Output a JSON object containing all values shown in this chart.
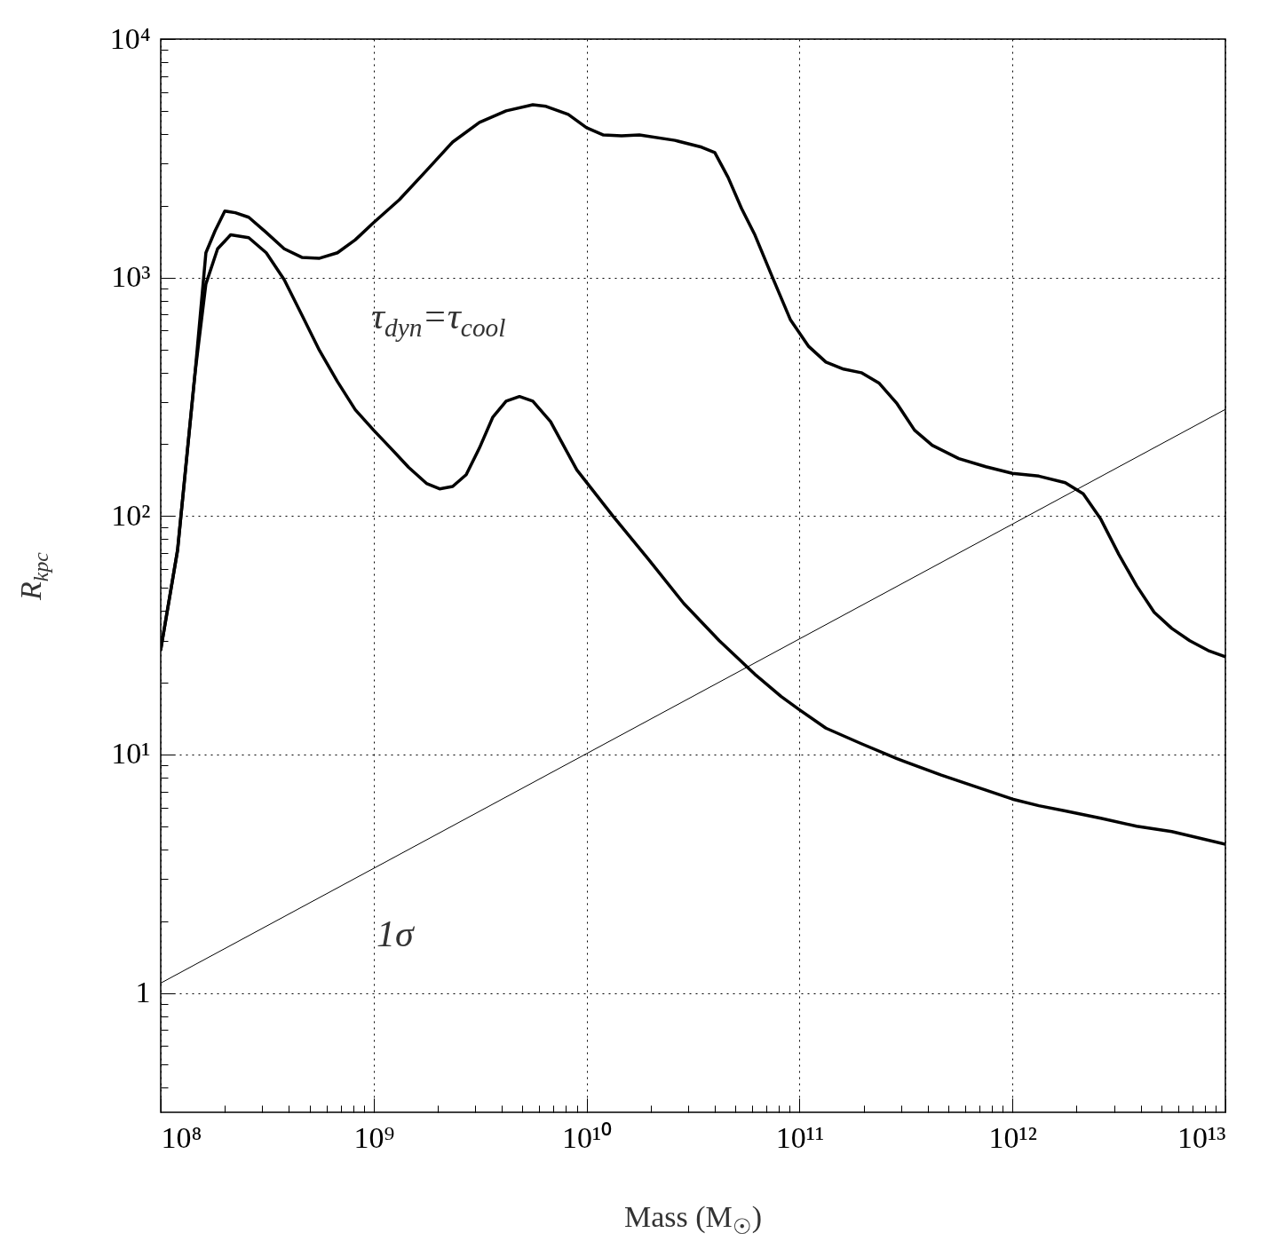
{
  "chart_data": {
    "type": "line",
    "xlabel": "Mass (M$_{☉}$)",
    "ylabel": "R$_{kpc}$",
    "log": "xy",
    "grid": true,
    "xlim": [
      100000000.0,
      10000000000000.0
    ],
    "ylim": [
      0.316,
      10000
    ],
    "xticks": [
      {
        "value": 100000000.0,
        "label": "10⁸"
      },
      {
        "value": 200000000.0,
        "label": null
      },
      {
        "value": 300000000.0,
        "label": null
      },
      {
        "value": 400000000.0,
        "label": null
      },
      {
        "value": 500000000.0,
        "label": null
      },
      {
        "value": 600000000.0,
        "label": null
      },
      {
        "value": 700000000.0,
        "label": null
      },
      {
        "value": 800000000.0,
        "label": null
      },
      {
        "value": 900000000.0,
        "label": null
      },
      {
        "value": 1000000000.0,
        "label": "10⁹"
      },
      {
        "value": 2000000000.0,
        "label": null
      },
      {
        "value": 3000000000.0,
        "label": null
      },
      {
        "value": 4000000000.0,
        "label": null
      },
      {
        "value": 5000000000.0,
        "label": null
      },
      {
        "value": 6000000000.0,
        "label": null
      },
      {
        "value": 7000000000.0,
        "label": null
      },
      {
        "value": 8000000000.0,
        "label": null
      },
      {
        "value": 9000000000.0,
        "label": null
      },
      {
        "value": 10000000000.0,
        "label": "10¹⁰"
      },
      {
        "value": 20000000000.0,
        "label": null
      },
      {
        "value": 30000000000.0,
        "label": null
      },
      {
        "value": 40000000000.0,
        "label": null
      },
      {
        "value": 50000000000.0,
        "label": null
      },
      {
        "value": 60000000000.0,
        "label": null
      },
      {
        "value": 70000000000.0,
        "label": null
      },
      {
        "value": 80000000000.0,
        "label": null
      },
      {
        "value": 90000000000.0,
        "label": null
      },
      {
        "value": 100000000000.0,
        "label": "10¹¹"
      },
      {
        "value": 200000000000.0,
        "label": null
      },
      {
        "value": 300000000000.0,
        "label": null
      },
      {
        "value": 400000000000.0,
        "label": null
      },
      {
        "value": 500000000000.0,
        "label": null
      },
      {
        "value": 600000000000.0,
        "label": null
      },
      {
        "value": 700000000000.0,
        "label": null
      },
      {
        "value": 800000000000.0,
        "label": null
      },
      {
        "value": 900000000000.0,
        "label": null
      },
      {
        "value": 1000000000000.0,
        "label": "10¹²"
      },
      {
        "value": 2000000000000.0,
        "label": null
      },
      {
        "value": 3000000000000.0,
        "label": null
      },
      {
        "value": 4000000000000.0,
        "label": null
      },
      {
        "value": 5000000000000.0,
        "label": null
      },
      {
        "value": 6000000000000.0,
        "label": null
      },
      {
        "value": 7000000000000.0,
        "label": null
      },
      {
        "value": 8000000000000.0,
        "label": null
      },
      {
        "value": 9000000000000.0,
        "label": null
      },
      {
        "value": 10000000000000.0,
        "label": "10¹³"
      }
    ],
    "yticks": [
      {
        "value": 0.4,
        "label": null
      },
      {
        "value": 0.5,
        "label": null
      },
      {
        "value": 0.6,
        "label": null
      },
      {
        "value": 0.7,
        "label": null
      },
      {
        "value": 0.8,
        "label": null
      },
      {
        "value": 0.9,
        "label": null
      },
      1,
      {
        "value": 2,
        "label": null
      },
      {
        "value": 3,
        "label": null
      },
      {
        "value": 4,
        "label": null
      },
      {
        "value": 5,
        "label": null
      },
      {
        "value": 6,
        "label": null
      },
      {
        "value": 7,
        "label": null
      },
      {
        "value": 8,
        "label": null
      },
      {
        "value": 9,
        "label": null
      },
      {
        "value": 10,
        "label": "10¹"
      },
      {
        "value": 20,
        "label": null
      },
      {
        "value": 30,
        "label": null
      },
      {
        "value": 40,
        "label": null
      },
      {
        "value": 50,
        "label": null
      },
      {
        "value": 60,
        "label": null
      },
      {
        "value": 70,
        "label": null
      },
      {
        "value": 80,
        "label": null
      },
      {
        "value": 90,
        "label": null
      },
      {
        "value": 100,
        "label": "10²"
      },
      {
        "value": 200,
        "label": null
      },
      {
        "value": 300,
        "label": null
      },
      {
        "value": 400,
        "label": null
      },
      {
        "value": 500,
        "label": null
      },
      {
        "value": 600,
        "label": null
      },
      {
        "value": 700,
        "label": null
      },
      {
        "value": 800,
        "label": null
      },
      {
        "value": 900,
        "label": null
      },
      {
        "value": 1000,
        "label": "10³"
      },
      {
        "value": 2000,
        "label": null
      },
      {
        "value": 3000,
        "label": null
      },
      {
        "value": 4000,
        "label": null
      },
      {
        "value": 5000,
        "label": null
      },
      {
        "value": 6000,
        "label": null
      },
      {
        "value": 7000,
        "label": null
      },
      {
        "value": 8000,
        "label": null
      },
      {
        "value": 9000,
        "label": null
      },
      {
        "value": 10000,
        "label": "10⁴"
      }
    ],
    "series": [
      {
        "color": "#000000",
        "x": [
          100000000.0,
          120000000.0,
          145000000.0,
          163000000.0,
          180000000.0,
          200000000.0,
          224000000.0,
          259000000.0,
          313000000.0,
          380000000.0,
          460000000.0,
          557000000.0,
          676000000.0,
          820000000.0,
          1000000000.0,
          1320000000.0,
          1770000000.0,
          2350000000.0,
          3140000000.0,
          4190000000.0,
          5590000000.0,
          6450000000.0,
          8200000000.0,
          10000000000.0,
          12000000000.0,
          14600000000.0,
          17700000000.0,
          26000000000.0,
          34700000000.0,
          40000000000.0,
          46200000000.0,
          53400000000.0,
          61700000000.0,
          74700000000.0,
          90500000000.0,
          110000000000.0,
          133000000000.0,
          161000000000.0,
          195000000000.0,
          237000000000.0,
          287000000000.0,
          347000000000.0,
          420000000000.0,
          560000000000.0,
          750000000000.0,
          1000000000000.0,
          1330000000000.0,
          1770000000000.0,
          2150000000000.0,
          2600000000000.0,
          3160000000000.0,
          3830000000000.0,
          4630000000000.0,
          5600000000000.0,
          6800000000000.0,
          8300000000000.0,
          10000000000000.0
        ],
        "values": [
          27.5,
          72,
          399,
          1270,
          1570,
          1900,
          1870,
          1790,
          1545,
          1320,
          1215,
          1205,
          1270,
          1440,
          1700,
          2120,
          2810,
          3700,
          4470,
          5000,
          5300,
          5220,
          4830,
          4250,
          3960,
          3930,
          3960,
          3760,
          3520,
          3340,
          2630,
          1950,
          1510,
          1000,
          667,
          516,
          442,
          413,
          399,
          360,
          296,
          229,
          198,
          174,
          161,
          151,
          147,
          138,
          124,
          97,
          69,
          51,
          39.5,
          33.8,
          30,
          27.3,
          25.7
        ]
      },
      {
        "color": "#000000",
        "x": [
          100000000.0,
          120000000.0,
          145000000.0,
          163000000.0,
          185000000.0,
          213000000.0,
          259000000.0,
          313000000.0,
          380000000.0,
          460000000.0,
          557000000.0,
          676000000.0,
          820000000.0,
          1000000000.0,
          1200000000.0,
          1460000000.0,
          1770000000.0,
          2040000000.0,
          2350000000.0,
          2720000000.0,
          3140000000.0,
          3630000000.0,
          4190000000.0,
          4840000000.0,
          5590000000.0,
          6770000000.0,
          9000000000.0,
          13300000000.0,
          19500000000.0,
          28600000000.0,
          42000000000.0,
          61700000000.0,
          82000000000.0,
          100000000000.0,
          133000000000.0,
          195000000000.0,
          287000000000.0,
          463000000000.0,
          680000000000.0,
          1000000000000.0,
          1330000000000.0,
          1770000000000.0,
          2600000000000.0,
          3830000000000.0,
          5600000000000.0,
          10000000000000.0
        ],
        "values": [
          27.5,
          72,
          399,
          940,
          1320,
          1510,
          1470,
          1270,
          980,
          697,
          494,
          366,
          279,
          229,
          193,
          160,
          137,
          130,
          133,
          149,
          193,
          260,
          303,
          317,
          303,
          249,
          156,
          100,
          66,
          43,
          30,
          21.7,
          17.5,
          15.4,
          12.9,
          11.1,
          9.6,
          8.2,
          7.3,
          6.5,
          6.1,
          5.8,
          5.4,
          5.0,
          4.75,
          4.2
        ]
      },
      {
        "color": "#000000",
        "x": [
          100000000.0,
          10000000000000.0
        ],
        "values": [
          1.1,
          280
        ]
      }
    ],
    "annotations": [
      "τ$_{dyn}$=τ$_{cool}$",
      "1σ"
    ]
  }
}
